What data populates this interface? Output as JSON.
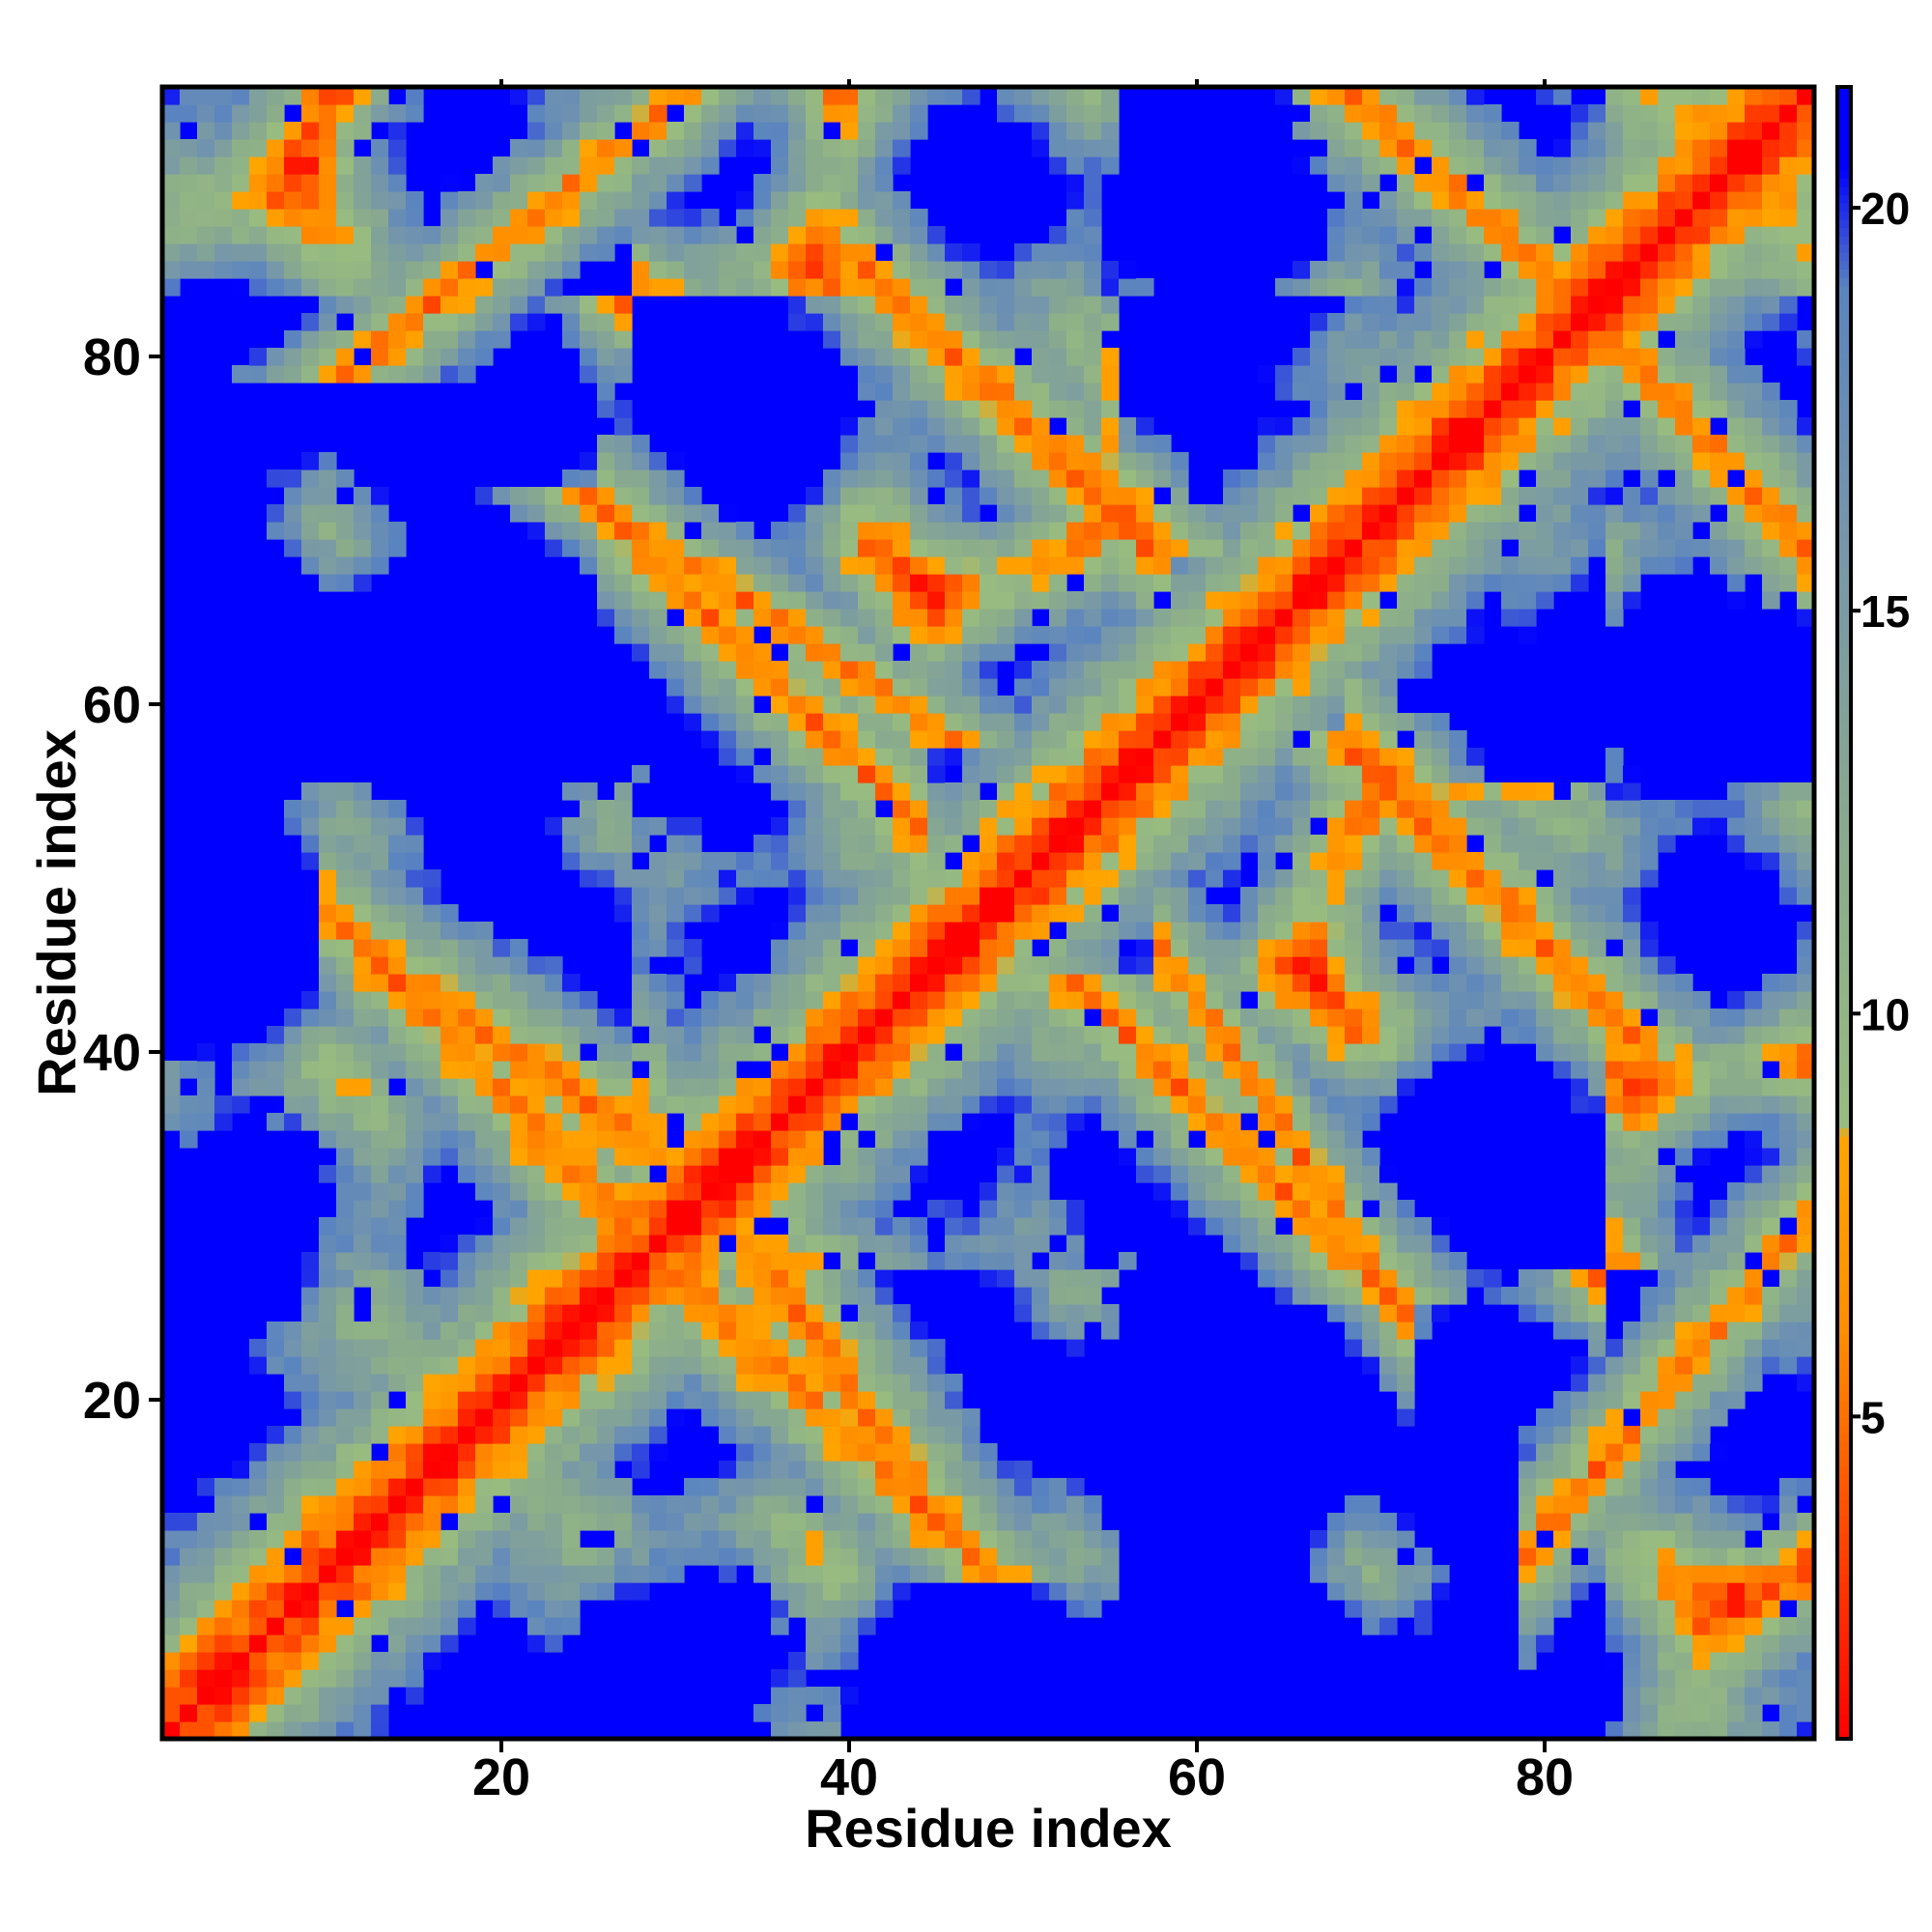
{
  "chart_data": {
    "type": "heatmap",
    "title": "",
    "xlabel": "Residue index",
    "ylabel": "Residue index",
    "n_residues": 95,
    "xlim": [
      1,
      95
    ],
    "ylim": [
      1,
      95
    ],
    "x_ticks": [
      20,
      40,
      60,
      80
    ],
    "y_ticks": [
      20,
      40,
      60,
      80
    ],
    "x_tick_labels": [
      "20",
      "40",
      "60",
      "80"
    ],
    "y_tick_labels": [
      "20",
      "40",
      "60",
      "80"
    ],
    "colorbar": {
      "range": [
        1,
        21.5
      ],
      "ticks": [
        5,
        10,
        15,
        20
      ],
      "tick_labels": [
        "5",
        "10",
        "15",
        "20"
      ],
      "colors": [
        {
          "value": 1,
          "color": "#ff0000"
        },
        {
          "value": 6,
          "color": "#ff8c00"
        },
        {
          "value": 8.5,
          "color": "#ffa500"
        },
        {
          "value": 8.6,
          "color": "#98bc80"
        },
        {
          "value": 12,
          "color": "#8aab8c"
        },
        {
          "value": 16,
          "color": "#7596ab"
        },
        {
          "value": 19,
          "color": "#5a84c0"
        },
        {
          "value": 20.5,
          "color": "#0000ff"
        }
      ],
      "saturation_color": "#0000ff"
    },
    "cutoff": 20,
    "grid": false,
    "legend_placement": "right (colorbar)",
    "structure": {
      "description_values": "distance-matrix contact map, symmetric about the diagonal",
      "main_diagonal_value": 1,
      "contact_bands": [
        {
          "i_range": [
            14,
            30
          ],
          "j_range": [
            44,
            27
          ],
          "min_value": 5
        },
        {
          "i_range": [
            16,
            25
          ],
          "j_range": [
            43,
            37
          ],
          "min_value": 5
        },
        {
          "i_range": [
            30,
            40
          ],
          "j_range": [
            67,
            57
          ],
          "min_value": 5
        },
        {
          "i_range": [
            44,
            54
          ],
          "j_range": [
            82,
            72
          ],
          "min_value": 5
        },
        {
          "i_range": [
            62,
            68
          ],
          "j_range": [
            40,
            31
          ],
          "min_value": 5
        },
        {
          "i_range": [
            73,
            82
          ],
          "j_range": [
            54,
            44
          ],
          "min_value": 5
        },
        {
          "i_range": [
            70,
            82
          ],
          "j_range": [
            94,
            83
          ],
          "min_value": 5
        },
        {
          "i_range": [
            83,
            93
          ],
          "j_range": [
            16,
            28
          ],
          "min_value": 5
        }
      ]
    }
  }
}
